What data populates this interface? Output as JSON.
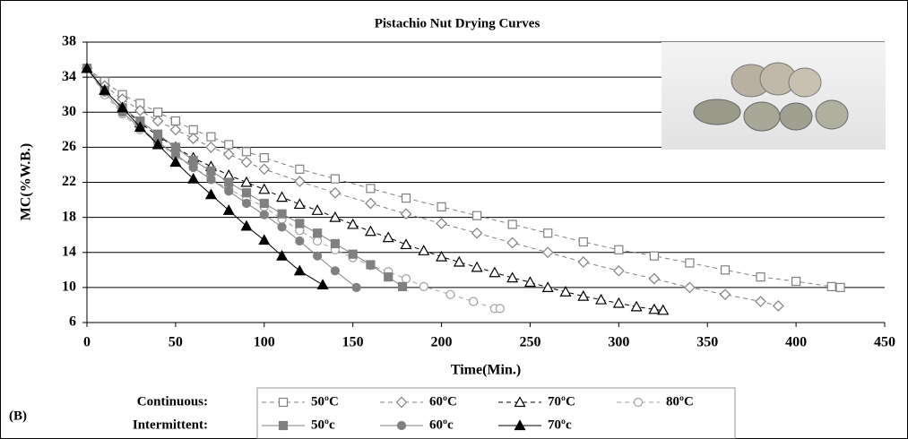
{
  "chart_data": {
    "type": "line",
    "title": "Pistachio Nut Drying Curves",
    "x_label": "Time(Min.)",
    "y_label": "MC(%W.B.)",
    "panel_label": "(B)",
    "legend_rows": [
      "Continuous:",
      "Intermittent:"
    ],
    "xlim": [
      0,
      450
    ],
    "xticks": [
      0,
      50,
      100,
      150,
      200,
      250,
      300,
      350,
      400,
      450
    ],
    "ylim": [
      6,
      38
    ],
    "yticks": [
      6,
      10,
      14,
      18,
      22,
      26,
      30,
      34,
      38
    ],
    "grid": true,
    "series": [
      {
        "name": "50ºC",
        "color": "#808080",
        "marker": "square",
        "filled": false,
        "dash": true,
        "x": [
          0,
          10,
          20,
          30,
          40,
          50,
          60,
          70,
          80,
          90,
          100,
          120,
          140,
          160,
          180,
          200,
          220,
          240,
          260,
          280,
          300,
          320,
          340,
          360,
          380,
          400,
          420,
          425
        ],
        "values": [
          35,
          33.5,
          32,
          31,
          30,
          29,
          28,
          27.2,
          26.3,
          25.5,
          24.8,
          23.5,
          22.4,
          21.3,
          20.2,
          19.2,
          18.2,
          17.2,
          16.2,
          15.2,
          14.3,
          13.6,
          12.8,
          12,
          11.2,
          10.7,
          10.1,
          10
        ]
      },
      {
        "name": "60ºC",
        "color": "#808080",
        "marker": "diamond",
        "filled": false,
        "dash": true,
        "x": [
          0,
          10,
          20,
          30,
          40,
          50,
          60,
          70,
          80,
          90,
          100,
          120,
          140,
          160,
          180,
          200,
          220,
          240,
          260,
          280,
          300,
          320,
          340,
          360,
          380,
          390
        ],
        "values": [
          35,
          33,
          31.5,
          30.2,
          29,
          28,
          27,
          26,
          25.2,
          24.3,
          23.5,
          22.1,
          20.8,
          19.6,
          18.4,
          17.3,
          16.2,
          15.1,
          14,
          12.9,
          11.9,
          11,
          10,
          9.2,
          8.4,
          7.9
        ]
      },
      {
        "name": "70ºC",
        "color": "#000000",
        "marker": "triangle",
        "filled": false,
        "dash": true,
        "x": [
          0,
          10,
          20,
          30,
          40,
          50,
          60,
          70,
          80,
          90,
          100,
          110,
          120,
          130,
          140,
          150,
          160,
          170,
          180,
          190,
          200,
          210,
          220,
          230,
          240,
          250,
          260,
          270,
          280,
          290,
          300,
          310,
          320,
          325
        ],
        "values": [
          35,
          32.5,
          30.5,
          28.8,
          27.3,
          26,
          24.8,
          23.8,
          22.8,
          22,
          21.2,
          20.3,
          19.5,
          18.8,
          18,
          17.2,
          16.4,
          15.7,
          14.9,
          14.2,
          13.5,
          12.9,
          12.3,
          11.7,
          11.1,
          10.6,
          10,
          9.5,
          9,
          8.6,
          8.2,
          7.8,
          7.5,
          7.4
        ]
      },
      {
        "name": "80ºC",
        "color": "#a0a0a0",
        "marker": "circle",
        "filled": false,
        "dash": true,
        "x": [
          0,
          10,
          20,
          30,
          40,
          50,
          60,
          70,
          80,
          90,
          100,
          110,
          120,
          130,
          140,
          150,
          160,
          170,
          180,
          190,
          205,
          218,
          230,
          233
        ],
        "values": [
          35,
          32,
          29.8,
          28,
          26.5,
          25,
          23.7,
          22.4,
          21.2,
          20.2,
          19.2,
          17.8,
          16.5,
          15.3,
          14.3,
          13.4,
          12.5,
          11.8,
          11,
          10.1,
          9.2,
          8.4,
          7.6,
          7.6
        ]
      },
      {
        "name": "50ºc",
        "color": "#808080",
        "marker": "square",
        "filled": true,
        "dash": false,
        "x": [
          0,
          10,
          20,
          30,
          40,
          50,
          60,
          70,
          80,
          90,
          100,
          110,
          120,
          130,
          140,
          150,
          160,
          170,
          178
        ],
        "values": [
          35,
          32.5,
          30.5,
          29,
          27.5,
          26,
          24.5,
          23.3,
          22,
          20.8,
          19.6,
          18.4,
          17.3,
          16.2,
          15,
          13.8,
          12.6,
          11.2,
          10.1
        ]
      },
      {
        "name": "60ºc",
        "color": "#808080",
        "marker": "circle",
        "filled": true,
        "dash": false,
        "x": [
          0,
          10,
          20,
          30,
          40,
          50,
          60,
          70,
          80,
          90,
          100,
          110,
          120,
          130,
          140,
          152
        ],
        "values": [
          35,
          32.3,
          30,
          28.2,
          26.6,
          25.2,
          23.7,
          22.3,
          21,
          19.6,
          18.3,
          16.9,
          15.3,
          13.6,
          11.9,
          10
        ]
      },
      {
        "name": "70ºc",
        "color": "#000000",
        "marker": "triangle",
        "filled": true,
        "dash": false,
        "x": [
          0,
          10,
          20,
          30,
          40,
          50,
          60,
          70,
          80,
          90,
          100,
          110,
          120,
          133
        ],
        "values": [
          35,
          32.5,
          30.5,
          28.3,
          26.3,
          24.3,
          22.4,
          20.6,
          18.8,
          17,
          15.4,
          13.6,
          11.9,
          10.3
        ]
      }
    ]
  }
}
